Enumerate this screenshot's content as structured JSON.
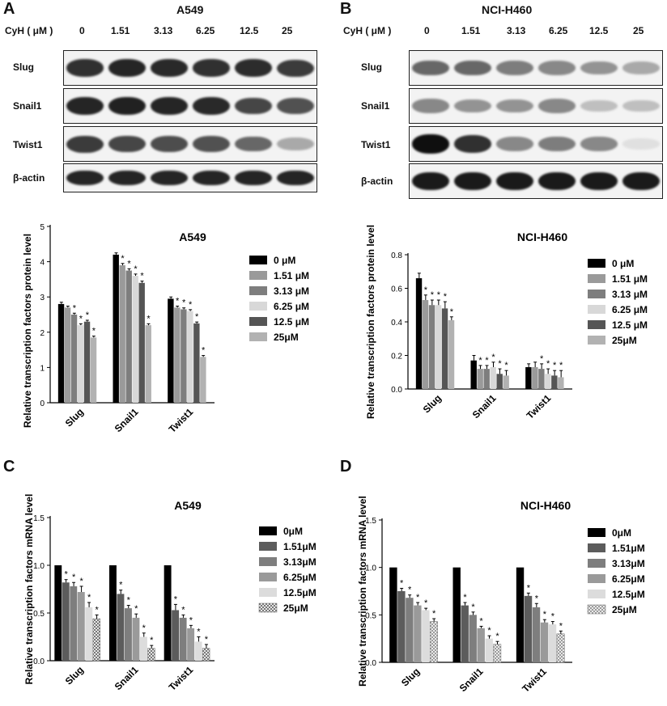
{
  "panels": {
    "A": {
      "letter": "A",
      "blot_title": "A549"
    },
    "B": {
      "letter": "B",
      "blot_title": "NCI-H460"
    },
    "C": {
      "letter": "C"
    },
    "D": {
      "letter": "D"
    }
  },
  "blot": {
    "cyh_label": "CyH ( μM )",
    "concentrations": [
      "0",
      "1.51",
      "3.13",
      "6.25",
      "12.5",
      "25"
    ],
    "rows": [
      "Slug",
      "Snail1",
      "Twist1",
      "β-actin"
    ],
    "band_intensity": {
      "A": [
        [
          0.85,
          0.9,
          0.88,
          0.85,
          0.87,
          0.8
        ],
        [
          0.9,
          0.92,
          0.9,
          0.88,
          0.75,
          0.7
        ],
        [
          0.8,
          0.75,
          0.72,
          0.7,
          0.6,
          0.3
        ],
        [
          0.9,
          0.9,
          0.9,
          0.9,
          0.9,
          0.9
        ]
      ],
      "B": [
        [
          0.6,
          0.6,
          0.5,
          0.45,
          0.4,
          0.3
        ],
        [
          0.45,
          0.4,
          0.4,
          0.45,
          0.2,
          0.2
        ],
        [
          1.0,
          0.85,
          0.45,
          0.5,
          0.45,
          0.05
        ],
        [
          0.95,
          0.95,
          0.95,
          0.95,
          0.95,
          0.95
        ]
      ]
    }
  },
  "chart_data": [
    {
      "id": "A",
      "type": "bar",
      "title": "A549",
      "ylabel": "Relative transcription factors protein level",
      "categories": [
        "Slug",
        "Snail1",
        "Twist1"
      ],
      "ylim": [
        0,
        5
      ],
      "yticks": [
        "0",
        "1",
        "2",
        "3",
        "4",
        "5"
      ],
      "series": [
        {
          "name": "0 μM",
          "values": [
            2.8,
            4.2,
            2.95
          ],
          "errors": [
            0.05,
            0.05,
            0.05
          ],
          "star": [
            false,
            false,
            false
          ],
          "color": "#000000",
          "pattern": "solid"
        },
        {
          "name": "1.51 μM",
          "values": [
            2.7,
            3.9,
            2.7
          ],
          "errors": [
            0.04,
            0.05,
            0.04
          ],
          "star": [
            false,
            true,
            true
          ],
          "color": "#9a9a9a",
          "pattern": "solid"
        },
        {
          "name": "3.13 μM",
          "values": [
            2.5,
            3.75,
            2.65
          ],
          "errors": [
            0.04,
            0.05,
            0.04
          ],
          "star": [
            true,
            true,
            true
          ],
          "color": "#7e7e7e",
          "pattern": "solid"
        },
        {
          "name": "6.25 μM",
          "values": [
            2.2,
            3.6,
            2.6
          ],
          "errors": [
            0.04,
            0.05,
            0.04
          ],
          "star": [
            true,
            true,
            true
          ],
          "color": "#d8d8d8",
          "pattern": "solid"
        },
        {
          "name": "12.5 μM",
          "values": [
            2.3,
            3.4,
            2.25
          ],
          "errors": [
            0.04,
            0.05,
            0.04
          ],
          "star": [
            true,
            true,
            true
          ],
          "color": "#555555",
          "pattern": "solid"
        },
        {
          "name": "25μM",
          "values": [
            1.85,
            2.2,
            1.3
          ],
          "errors": [
            0.04,
            0.04,
            0.04
          ],
          "star": [
            true,
            true,
            true
          ],
          "color": "#b2b2b2",
          "pattern": "solid"
        }
      ]
    },
    {
      "id": "B",
      "type": "bar",
      "title": "NCI-H460",
      "ylabel": "Relative transcription factors protein level",
      "categories": [
        "Slug",
        "Snail1",
        "Twist1"
      ],
      "ylim": [
        0,
        0.8
      ],
      "yticks": [
        "0.0",
        "0.2",
        "0.4",
        "0.6",
        "0.8"
      ],
      "series": [
        {
          "name": "0 μM",
          "values": [
            0.66,
            0.17,
            0.13
          ],
          "errors": [
            0.03,
            0.03,
            0.02
          ],
          "star": [
            false,
            false,
            false
          ],
          "color": "#000000",
          "pattern": "solid"
        },
        {
          "name": "1.51 μM",
          "values": [
            0.53,
            0.12,
            0.13
          ],
          "errors": [
            0.03,
            0.02,
            0.03
          ],
          "star": [
            true,
            true,
            false
          ],
          "color": "#9a9a9a",
          "pattern": "solid"
        },
        {
          "name": "3.13 μM",
          "values": [
            0.5,
            0.12,
            0.12
          ],
          "errors": [
            0.03,
            0.02,
            0.03
          ],
          "star": [
            true,
            true,
            true
          ],
          "color": "#7e7e7e",
          "pattern": "solid"
        },
        {
          "name": "6.25 μM",
          "values": [
            0.5,
            0.13,
            0.09
          ],
          "errors": [
            0.03,
            0.03,
            0.03
          ],
          "star": [
            true,
            true,
            true
          ],
          "color": "#d8d8d8",
          "pattern": "solid"
        },
        {
          "name": "12.5 μM",
          "values": [
            0.48,
            0.09,
            0.08
          ],
          "errors": [
            0.04,
            0.03,
            0.03
          ],
          "star": [
            true,
            true,
            true
          ],
          "color": "#555555",
          "pattern": "solid"
        },
        {
          "name": "25μM",
          "values": [
            0.41,
            0.08,
            0.07
          ],
          "errors": [
            0.02,
            0.03,
            0.04
          ],
          "star": [
            true,
            true,
            true
          ],
          "color": "#b2b2b2",
          "pattern": "solid"
        }
      ]
    },
    {
      "id": "C",
      "type": "bar",
      "title": "A549",
      "ylabel": "Relative transcription factors mRNA level",
      "categories": [
        "Slug",
        "Snail1",
        "Twist1"
      ],
      "ylim": [
        0,
        1.5
      ],
      "yticks": [
        "0.0",
        "0.5",
        "1.0",
        "1.5"
      ],
      "series": [
        {
          "name": "0μM",
          "values": [
            1.0,
            1.0,
            1.0
          ],
          "errors": [
            0,
            0,
            0
          ],
          "star": [
            false,
            false,
            false
          ],
          "color": "#000000",
          "pattern": "solid"
        },
        {
          "name": "1.51μM",
          "values": [
            0.82,
            0.7,
            0.53
          ],
          "errors": [
            0.03,
            0.04,
            0.06
          ],
          "star": [
            true,
            true,
            true
          ],
          "color": "#5c5c5c",
          "pattern": "solid"
        },
        {
          "name": "3.13μM",
          "values": [
            0.78,
            0.55,
            0.45
          ],
          "errors": [
            0.04,
            0.03,
            0.03
          ],
          "star": [
            true,
            true,
            true
          ],
          "color": "#7e7e7e",
          "pattern": "solid"
        },
        {
          "name": "6.25μM",
          "values": [
            0.72,
            0.45,
            0.34
          ],
          "errors": [
            0.06,
            0.04,
            0.03
          ],
          "star": [
            true,
            true,
            true
          ],
          "color": "#9a9a9a",
          "pattern": "solid"
        },
        {
          "name": "12.5μM",
          "values": [
            0.56,
            0.25,
            0.2
          ],
          "errors": [
            0.05,
            0.04,
            0.05
          ],
          "star": [
            true,
            true,
            true
          ],
          "color": "#dcdcdc",
          "pattern": "solid"
        },
        {
          "name": "25μM",
          "values": [
            0.44,
            0.13,
            0.13
          ],
          "errors": [
            0.04,
            0.03,
            0.04
          ],
          "star": [
            true,
            true,
            true
          ],
          "color": "#a0a0a0",
          "pattern": "checker"
        }
      ]
    },
    {
      "id": "D",
      "type": "bar",
      "title": "NCI-H460",
      "ylabel": "Relative transcription factors mRNA level",
      "categories": [
        "Slug",
        "Snail1",
        "Twist1"
      ],
      "ylim": [
        0,
        1.5
      ],
      "yticks": [
        "0.0",
        "0.5",
        "1.0",
        "1.5"
      ],
      "series": [
        {
          "name": "0μM",
          "values": [
            1.0,
            1.0,
            1.0
          ],
          "errors": [
            0,
            0,
            0
          ],
          "star": [
            false,
            false,
            false
          ],
          "color": "#000000",
          "pattern": "solid"
        },
        {
          "name": "1.51μM",
          "values": [
            0.75,
            0.6,
            0.7
          ],
          "errors": [
            0.03,
            0.03,
            0.03
          ],
          "star": [
            true,
            true,
            true
          ],
          "color": "#5c5c5c",
          "pattern": "solid"
        },
        {
          "name": "3.13μM",
          "values": [
            0.68,
            0.5,
            0.58
          ],
          "errors": [
            0.03,
            0.03,
            0.04
          ],
          "star": [
            true,
            true,
            true
          ],
          "color": "#7e7e7e",
          "pattern": "solid"
        },
        {
          "name": "6.25μM",
          "values": [
            0.6,
            0.36,
            0.42
          ],
          "errors": [
            0.03,
            0.02,
            0.03
          ],
          "star": [
            true,
            true,
            true
          ],
          "color": "#9a9a9a",
          "pattern": "solid"
        },
        {
          "name": "12.5μM",
          "values": [
            0.55,
            0.25,
            0.4
          ],
          "errors": [
            0.02,
            0.03,
            0.03
          ],
          "star": [
            true,
            true,
            true
          ],
          "color": "#dcdcdc",
          "pattern": "solid"
        },
        {
          "name": "25μM",
          "values": [
            0.43,
            0.19,
            0.3
          ],
          "errors": [
            0.03,
            0.03,
            0.03
          ],
          "star": [
            true,
            true,
            true
          ],
          "color": "#c8c8c8",
          "pattern": "crosshatch"
        }
      ]
    }
  ]
}
